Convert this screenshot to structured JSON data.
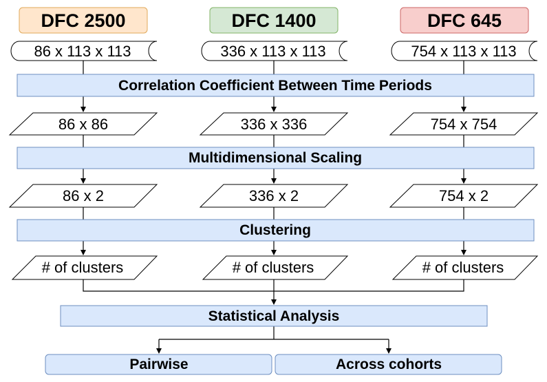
{
  "columns": [
    {
      "title": "DFC 2500",
      "color": "#ffe6cc",
      "border": "#e0a95a",
      "input": "86 x 113 x 113",
      "corr": "86 x 86",
      "mds": "86 x 2",
      "clusters": "# of clusters"
    },
    {
      "title": "DFC 1400",
      "color": "#d5e8d4",
      "border": "#82b366",
      "input": "336 x 113 x 113",
      "corr": "336 x 336",
      "mds": "336 x 2",
      "clusters": "# of clusters"
    },
    {
      "title": "DFC 645",
      "color": "#f8cecc",
      "border": "#cc6666",
      "input": "754 x 113 x 113",
      "corr": "754 x 754",
      "mds": "754 x 2",
      "clusters": "# of clusters"
    }
  ],
  "steps": {
    "correlation": "Correlation Coefficient Between Time Periods",
    "mds": "Multidimensional Scaling",
    "clustering": "Clustering",
    "statistics": "Statistical Analysis"
  },
  "outputs": {
    "pairwise": "Pairwise",
    "across": "Across cohorts"
  },
  "colors": {
    "step_fill": "#dae8fc",
    "step_border": "#6c8ebf"
  }
}
